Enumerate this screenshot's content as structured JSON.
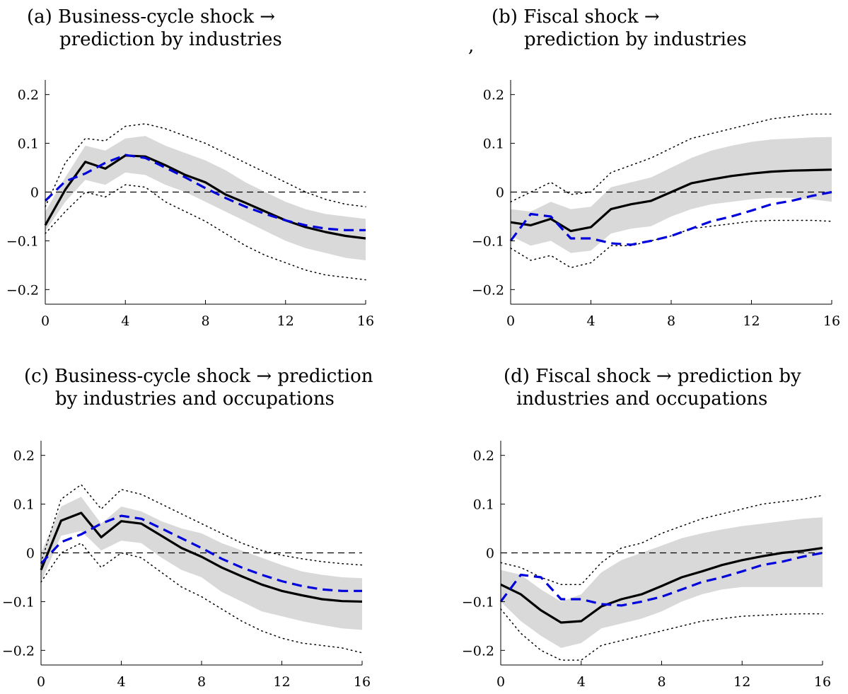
{
  "stray_mark": ",",
  "chart_data": [
    {
      "type": "line",
      "title": [
        "(a) Business-cycle shock →",
        "prediction by industries"
      ],
      "xlim": [
        0,
        16
      ],
      "ylim": [
        -0.23,
        0.23
      ],
      "xticks": [
        0,
        4,
        8,
        12,
        16
      ],
      "xtick_labels": [
        "0",
        "4",
        "8",
        "12",
        "16"
      ],
      "yticks": [
        0.2,
        0.1,
        0,
        -0.1,
        -0.2
      ],
      "ytick_labels": [
        "0.2",
        "0.1",
        "0",
        "−0.1",
        "−0.2"
      ],
      "x": [
        0,
        1,
        2,
        3,
        4,
        5,
        6,
        7,
        8,
        9,
        10,
        11,
        12,
        13,
        14,
        15,
        16
      ],
      "band_upper": [
        -0.04,
        0.03,
        0.095,
        0.085,
        0.11,
        0.115,
        0.095,
        0.08,
        0.065,
        0.045,
        0.02,
        0.0,
        -0.02,
        -0.035,
        -0.045,
        -0.05,
        -0.055
      ],
      "band_lower": [
        -0.08,
        -0.02,
        0.025,
        0.015,
        0.04,
        0.035,
        0.015,
        0.0,
        -0.02,
        -0.04,
        -0.06,
        -0.08,
        -0.1,
        -0.115,
        -0.125,
        -0.135,
        -0.14
      ],
      "dotted_upper": [
        -0.03,
        0.06,
        0.11,
        0.105,
        0.135,
        0.14,
        0.13,
        0.115,
        0.1,
        0.08,
        0.06,
        0.04,
        0.02,
        0.0,
        -0.015,
        -0.025,
        -0.03
      ],
      "dotted_lower": [
        -0.085,
        -0.04,
        0.0,
        -0.01,
        0.015,
        0.01,
        -0.02,
        -0.04,
        -0.06,
        -0.085,
        -0.11,
        -0.13,
        -0.145,
        -0.16,
        -0.17,
        -0.175,
        -0.18
      ],
      "series": [
        {
          "style": "solid",
          "color": "#000000",
          "values": [
            -0.068,
            0.005,
            0.062,
            0.048,
            0.075,
            0.073,
            0.055,
            0.035,
            0.02,
            -0.005,
            -0.022,
            -0.04,
            -0.058,
            -0.072,
            -0.082,
            -0.09,
            -0.095
          ]
        },
        {
          "style": "dashed",
          "color": "#0000dd",
          "values": [
            -0.018,
            0.022,
            0.038,
            0.06,
            0.076,
            0.07,
            0.05,
            0.03,
            0.008,
            -0.012,
            -0.03,
            -0.045,
            -0.058,
            -0.068,
            -0.075,
            -0.078,
            -0.078
          ]
        }
      ],
      "zero_line": true
    },
    {
      "type": "line",
      "title": [
        "(b) Fiscal shock →",
        "prediction by industries"
      ],
      "xlim": [
        0,
        16
      ],
      "ylim": [
        -0.23,
        0.23
      ],
      "xticks": [
        0,
        4,
        8,
        12,
        16
      ],
      "xtick_labels": [
        "0",
        "4",
        "8",
        "12",
        "16"
      ],
      "yticks": [
        0.2,
        0.1,
        0,
        -0.1,
        -0.2
      ],
      "ytick_labels": [
        "0.2",
        "0.1",
        "0",
        "−0.1",
        "−0.2"
      ],
      "x": [
        0,
        1,
        2,
        3,
        4,
        5,
        6,
        7,
        8,
        9,
        10,
        11,
        12,
        13,
        14,
        15,
        16
      ],
      "band_upper": [
        -0.035,
        -0.04,
        -0.02,
        -0.035,
        -0.03,
        0.01,
        0.02,
        0.03,
        0.05,
        0.07,
        0.085,
        0.095,
        0.103,
        0.108,
        0.11,
        0.112,
        0.113
      ],
      "band_lower": [
        -0.09,
        -0.11,
        -0.1,
        -0.125,
        -0.12,
        -0.085,
        -0.075,
        -0.07,
        -0.05,
        -0.035,
        -0.025,
        -0.02,
        -0.015,
        -0.012,
        -0.012,
        -0.015,
        -0.02
      ],
      "dotted_upper": [
        -0.02,
        0.0,
        0.02,
        -0.005,
        0.0,
        0.04,
        0.055,
        0.07,
        0.09,
        0.11,
        0.12,
        0.13,
        0.14,
        0.15,
        0.155,
        0.16,
        0.16
      ],
      "dotted_lower": [
        -0.115,
        -0.14,
        -0.13,
        -0.155,
        -0.145,
        -0.11,
        -0.11,
        -0.1,
        -0.09,
        -0.075,
        -0.07,
        -0.065,
        -0.06,
        -0.058,
        -0.058,
        -0.058,
        -0.06
      ],
      "series": [
        {
          "style": "solid",
          "color": "#000000",
          "values": [
            -0.062,
            -0.068,
            -0.055,
            -0.08,
            -0.072,
            -0.035,
            -0.025,
            -0.018,
            0.0,
            0.018,
            0.026,
            0.033,
            0.038,
            0.042,
            0.044,
            0.045,
            0.046
          ]
        },
        {
          "style": "dashed",
          "color": "#0000dd",
          "values": [
            -0.1,
            -0.045,
            -0.05,
            -0.095,
            -0.095,
            -0.105,
            -0.108,
            -0.1,
            -0.09,
            -0.075,
            -0.06,
            -0.05,
            -0.038,
            -0.025,
            -0.018,
            -0.008,
            0.0
          ]
        }
      ],
      "zero_line": true
    },
    {
      "type": "line",
      "title": [
        "(c) Business-cycle shock → prediction",
        "by industries and occupations"
      ],
      "xlim": [
        0,
        16
      ],
      "ylim": [
        -0.23,
        0.23
      ],
      "xticks": [
        0,
        4,
        8,
        12,
        16
      ],
      "xtick_labels": [
        "0",
        "4",
        "8",
        "12",
        "16"
      ],
      "yticks": [
        0.2,
        0.1,
        0,
        -0.1,
        -0.2
      ],
      "ytick_labels": [
        "0.2",
        "0.1",
        "0",
        "−0.1",
        "−0.2"
      ],
      "x": [
        0,
        1,
        2,
        3,
        4,
        5,
        6,
        7,
        8,
        9,
        10,
        11,
        12,
        13,
        14,
        15,
        16
      ],
      "band_upper": [
        0.0,
        0.095,
        0.115,
        0.06,
        0.095,
        0.085,
        0.065,
        0.05,
        0.04,
        0.02,
        0.005,
        -0.01,
        -0.025,
        -0.038,
        -0.045,
        -0.05,
        -0.052
      ],
      "band_lower": [
        -0.06,
        0.035,
        0.045,
        0.005,
        0.025,
        0.02,
        -0.01,
        -0.035,
        -0.05,
        -0.08,
        -0.1,
        -0.12,
        -0.13,
        -0.14,
        -0.148,
        -0.155,
        -0.158
      ],
      "dotted_upper": [
        -0.02,
        0.11,
        0.14,
        0.09,
        0.13,
        0.12,
        0.1,
        0.08,
        0.06,
        0.04,
        0.02,
        0.005,
        -0.005,
        -0.012,
        -0.018,
        -0.022,
        -0.025
      ],
      "dotted_lower": [
        -0.06,
        0.0,
        0.02,
        -0.03,
        0.0,
        -0.01,
        -0.04,
        -0.07,
        -0.09,
        -0.115,
        -0.14,
        -0.16,
        -0.175,
        -0.185,
        -0.19,
        -0.195,
        -0.205
      ],
      "series": [
        {
          "style": "solid",
          "color": "#000000",
          "values": [
            -0.035,
            0.066,
            0.082,
            0.032,
            0.065,
            0.06,
            0.035,
            0.01,
            -0.008,
            -0.03,
            -0.048,
            -0.065,
            -0.078,
            -0.087,
            -0.095,
            -0.099,
            -0.1
          ]
        },
        {
          "style": "dashed",
          "color": "#0000dd",
          "values": [
            -0.022,
            0.022,
            0.038,
            0.06,
            0.076,
            0.07,
            0.05,
            0.03,
            0.01,
            -0.012,
            -0.03,
            -0.045,
            -0.058,
            -0.068,
            -0.075,
            -0.078,
            -0.078
          ]
        }
      ],
      "zero_line": true
    },
    {
      "type": "line",
      "title": [
        "(d) Fiscal shock → prediction by",
        "industries and occupations"
      ],
      "xlim": [
        0,
        16
      ],
      "ylim": [
        -0.23,
        0.23
      ],
      "xticks": [
        0,
        4,
        8,
        12,
        16
      ],
      "xtick_labels": [
        "0",
        "4",
        "8",
        "12",
        "16"
      ],
      "yticks": [
        0.2,
        0.1,
        0,
        -0.1,
        -0.2
      ],
      "ytick_labels": [
        "0.2",
        "0.1",
        "0",
        "−0.1",
        "−0.2"
      ],
      "x": [
        0,
        1,
        2,
        3,
        4,
        5,
        6,
        7,
        8,
        9,
        10,
        11,
        12,
        13,
        14,
        15,
        16
      ],
      "band_upper": [
        -0.035,
        -0.045,
        -0.075,
        -0.1,
        -0.085,
        -0.04,
        -0.015,
        0.0,
        0.015,
        0.03,
        0.04,
        0.048,
        0.055,
        0.06,
        0.065,
        0.07,
        0.073
      ],
      "band_lower": [
        -0.1,
        -0.14,
        -0.17,
        -0.195,
        -0.185,
        -0.155,
        -0.145,
        -0.135,
        -0.12,
        -0.1,
        -0.085,
        -0.075,
        -0.07,
        -0.07,
        -0.07,
        -0.07,
        -0.07
      ],
      "dotted_upper": [
        -0.02,
        -0.03,
        -0.05,
        -0.065,
        -0.065,
        -0.02,
        0.01,
        0.02,
        0.04,
        0.055,
        0.07,
        0.08,
        0.09,
        0.1,
        0.105,
        0.11,
        0.118
      ],
      "dotted_lower": [
        -0.115,
        -0.165,
        -0.2,
        -0.22,
        -0.22,
        -0.19,
        -0.18,
        -0.17,
        -0.16,
        -0.15,
        -0.14,
        -0.135,
        -0.13,
        -0.128,
        -0.126,
        -0.125,
        -0.125
      ],
      "series": [
        {
          "style": "solid",
          "color": "#000000",
          "values": [
            -0.065,
            -0.085,
            -0.118,
            -0.143,
            -0.14,
            -0.11,
            -0.095,
            -0.085,
            -0.068,
            -0.05,
            -0.038,
            -0.025,
            -0.015,
            -0.007,
            0.0,
            0.004,
            0.01
          ]
        },
        {
          "style": "dashed",
          "color": "#0000dd",
          "values": [
            -0.1,
            -0.045,
            -0.05,
            -0.095,
            -0.095,
            -0.105,
            -0.108,
            -0.1,
            -0.09,
            -0.075,
            -0.06,
            -0.05,
            -0.038,
            -0.025,
            -0.018,
            -0.008,
            0.0
          ]
        }
      ],
      "zero_line": true
    }
  ]
}
